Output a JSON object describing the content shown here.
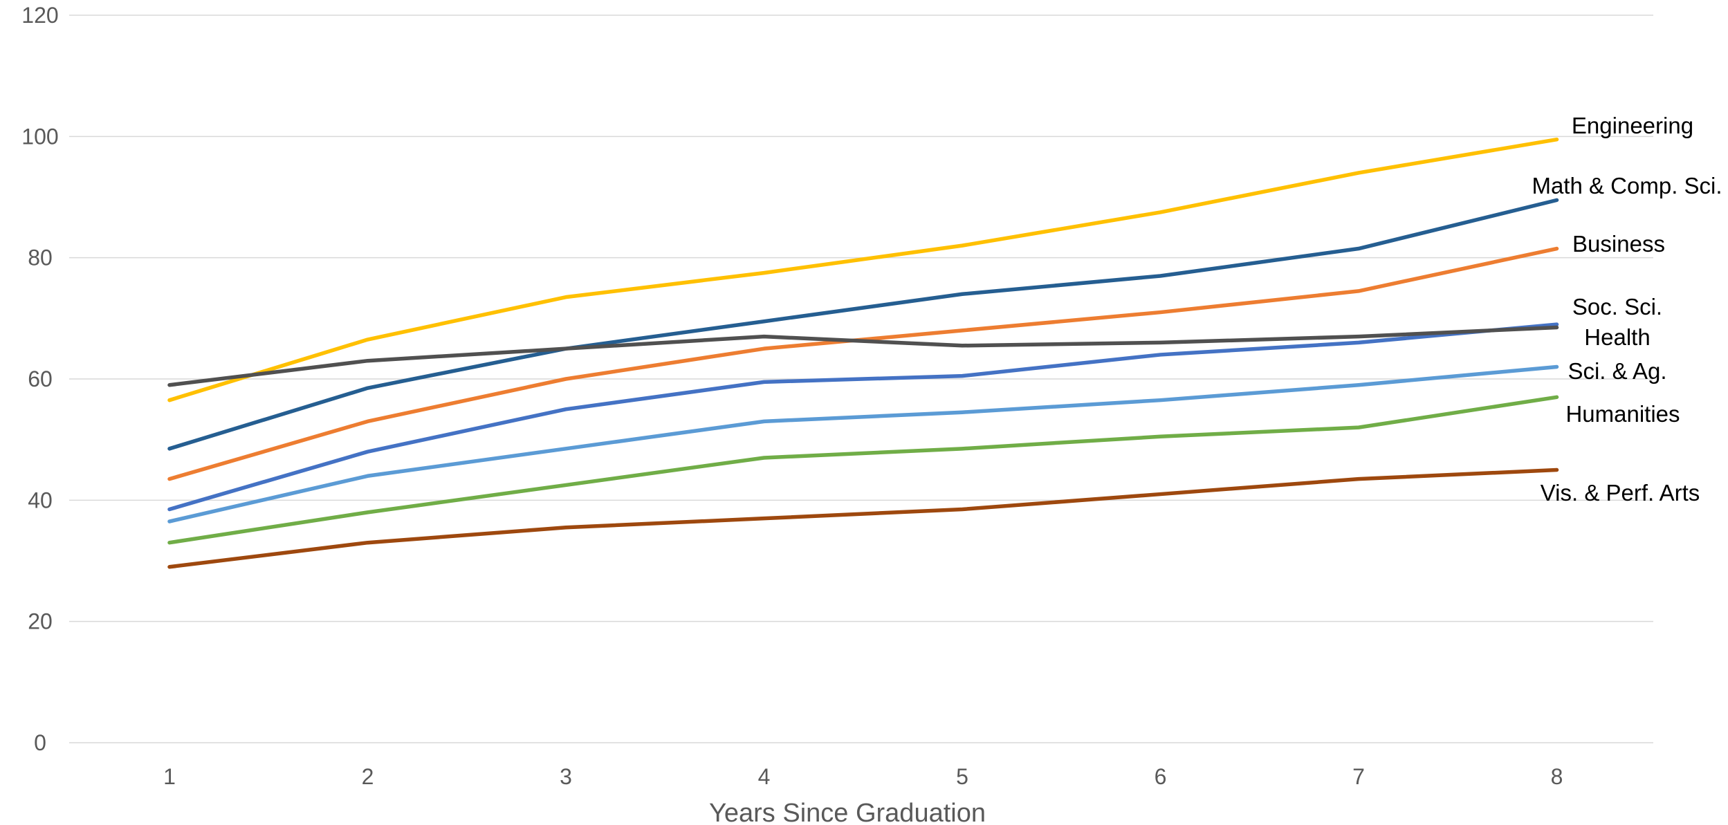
{
  "chart_data": {
    "type": "line",
    "title": "",
    "xlabel": "Years Since Graduation",
    "ylabel": "",
    "x": [
      1,
      2,
      3,
      4,
      5,
      6,
      7,
      8
    ],
    "ylim": [
      0,
      120
    ],
    "yticks": [
      0,
      20,
      40,
      60,
      80,
      100,
      120
    ],
    "grid": true,
    "legend": "none",
    "series": [
      {
        "name": "Engineering",
        "color": "#FFC000",
        "values": [
          56.5,
          66.5,
          73.5,
          77.5,
          82.0,
          87.5,
          94.0,
          99.5
        ]
      },
      {
        "name": "Math & Comp. Sci.",
        "color": "#255E91",
        "values": [
          48.5,
          58.5,
          65.0,
          69.5,
          74.0,
          77.0,
          81.5,
          89.5
        ]
      },
      {
        "name": "Business",
        "color": "#ED7D31",
        "values": [
          43.5,
          53.0,
          60.0,
          65.0,
          68.0,
          71.0,
          74.5,
          81.5
        ]
      },
      {
        "name": "Soc. Sci.",
        "color": "#4472C4",
        "values": [
          38.5,
          48.0,
          55.0,
          59.5,
          60.5,
          64.0,
          66.0,
          69.0
        ]
      },
      {
        "name": "Health",
        "color": "#505050",
        "values": [
          59.0,
          63.0,
          65.0,
          67.0,
          65.5,
          66.0,
          67.0,
          68.5
        ]
      },
      {
        "name": "Sci. & Ag.",
        "color": "#5B9BD5",
        "values": [
          36.5,
          44.0,
          48.5,
          53.0,
          54.5,
          56.5,
          59.0,
          62.0
        ]
      },
      {
        "name": "Humanities",
        "color": "#70AD47",
        "values": [
          33.0,
          38.0,
          42.5,
          47.0,
          48.5,
          50.5,
          52.0,
          57.0
        ]
      },
      {
        "name": "Vis. & Perf. Arts",
        "color": "#9E480E",
        "values": [
          29.0,
          33.0,
          35.5,
          37.0,
          38.5,
          41.0,
          43.5,
          45.0
        ]
      }
    ]
  }
}
